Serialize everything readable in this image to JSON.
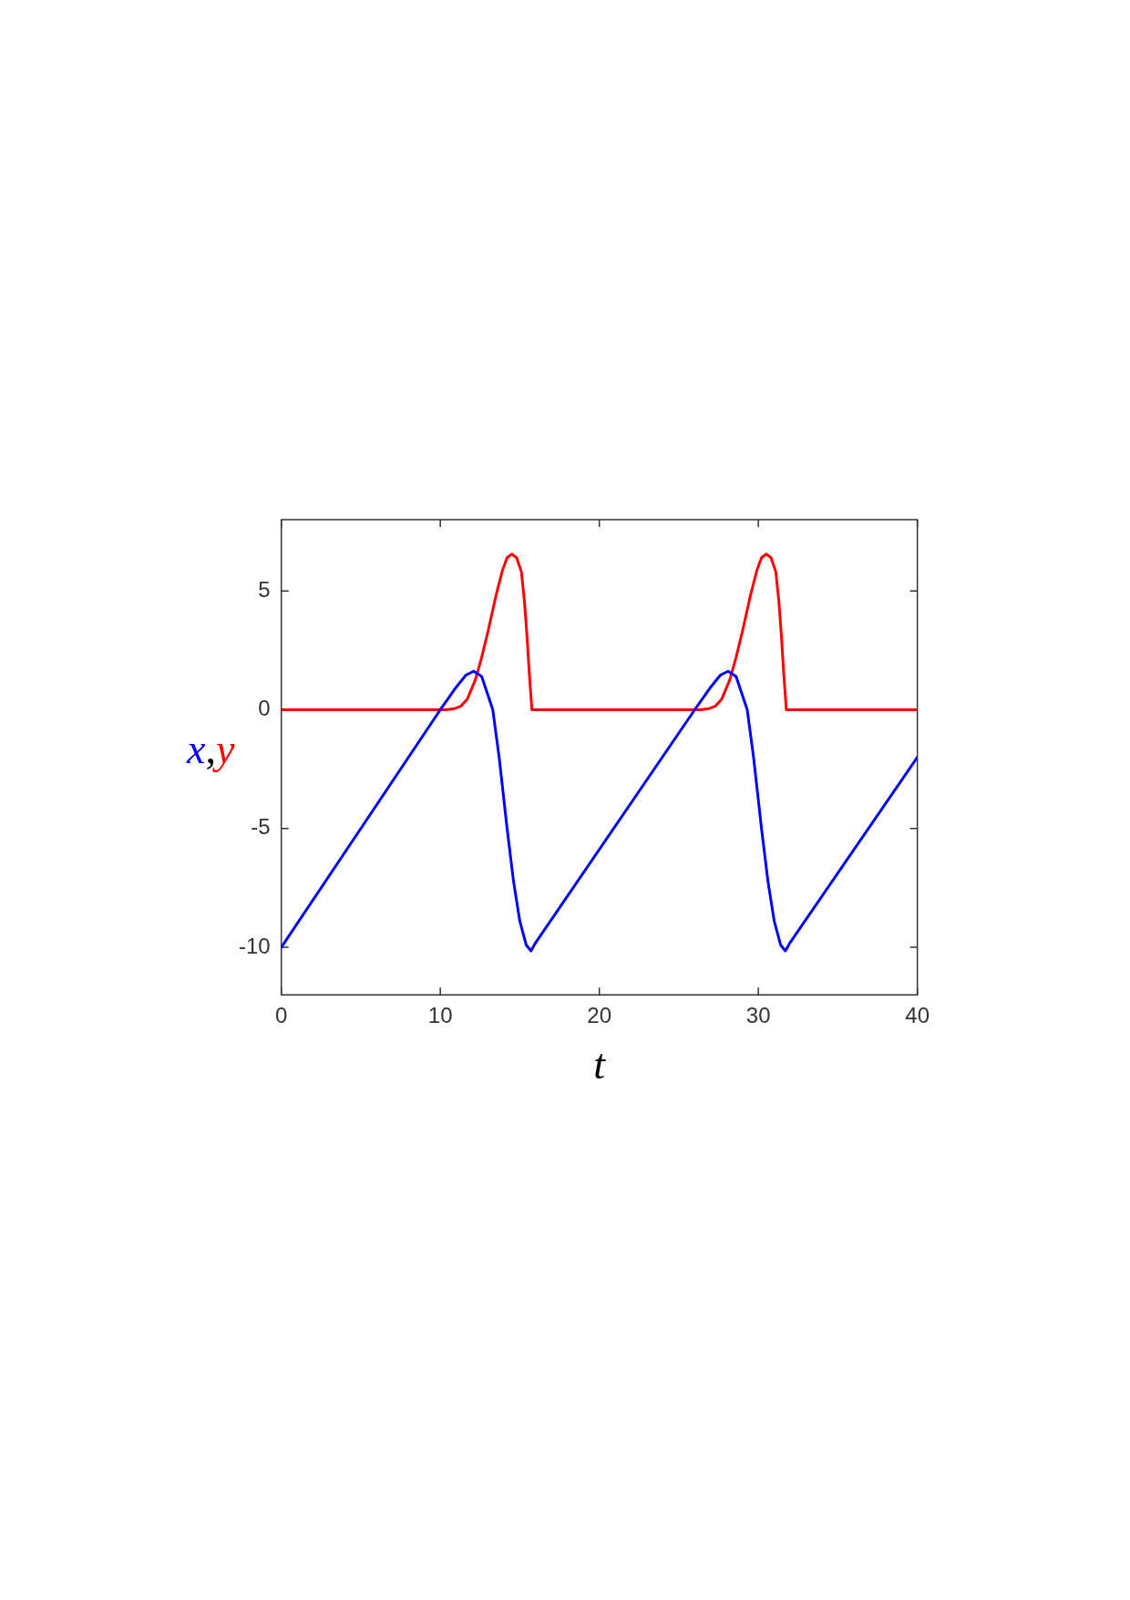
{
  "chart_data": {
    "type": "line",
    "xlabel": "t",
    "ylabel": "x,y",
    "xlim": [
      0,
      40
    ],
    "ylim": [
      -12,
      8
    ],
    "xticks": [
      0,
      10,
      20,
      30,
      40
    ],
    "yticks": [
      -10,
      -5,
      0,
      5
    ],
    "grid": false,
    "legend": false,
    "marker": "none",
    "line_style": "solid",
    "series": [
      {
        "color": "#0000ff",
        "x": [
          0,
          10,
          11,
          11.6,
          12.1,
          12.6,
          13,
          13.3,
          13.7,
          14.2,
          14.6,
          15,
          15.4,
          15.7,
          16,
          26,
          27,
          27.6,
          28.1,
          28.6,
          29,
          29.3,
          29.7,
          30.2,
          30.6,
          31,
          31.4,
          31.7,
          32,
          40
        ],
        "values": [
          -10,
          0,
          0.95,
          1.45,
          1.62,
          1.4,
          0.6,
          0,
          -2,
          -5,
          -7.2,
          -8.9,
          -9.9,
          -10.15,
          -9.8,
          0,
          0.95,
          1.45,
          1.62,
          1.4,
          0.6,
          0,
          -2,
          -5,
          -7.2,
          -8.9,
          -9.9,
          -10.15,
          -9.8,
          -2
        ]
      },
      {
        "color": "#ff0000",
        "x": [
          0,
          10.4,
          10.9,
          11.3,
          11.7,
          12.2,
          12.6,
          13,
          13.5,
          13.9,
          14.2,
          14.5,
          14.8,
          15.1,
          15.3,
          15.45,
          15.6,
          15.76,
          26.4,
          26.9,
          27.3,
          27.7,
          28.2,
          28.6,
          29,
          29.5,
          29.9,
          30.2,
          30.5,
          30.8,
          31.1,
          31.3,
          31.45,
          31.6,
          31.76,
          40
        ],
        "values": [
          0,
          0,
          0.05,
          0.15,
          0.45,
          1.25,
          2.2,
          3.3,
          4.8,
          5.85,
          6.4,
          6.55,
          6.4,
          5.8,
          4.5,
          3.1,
          1.5,
          0,
          0,
          0.05,
          0.15,
          0.45,
          1.25,
          2.2,
          3.3,
          4.8,
          5.85,
          6.4,
          6.55,
          6.4,
          5.8,
          4.5,
          3.1,
          1.5,
          0,
          0
        ]
      }
    ]
  }
}
